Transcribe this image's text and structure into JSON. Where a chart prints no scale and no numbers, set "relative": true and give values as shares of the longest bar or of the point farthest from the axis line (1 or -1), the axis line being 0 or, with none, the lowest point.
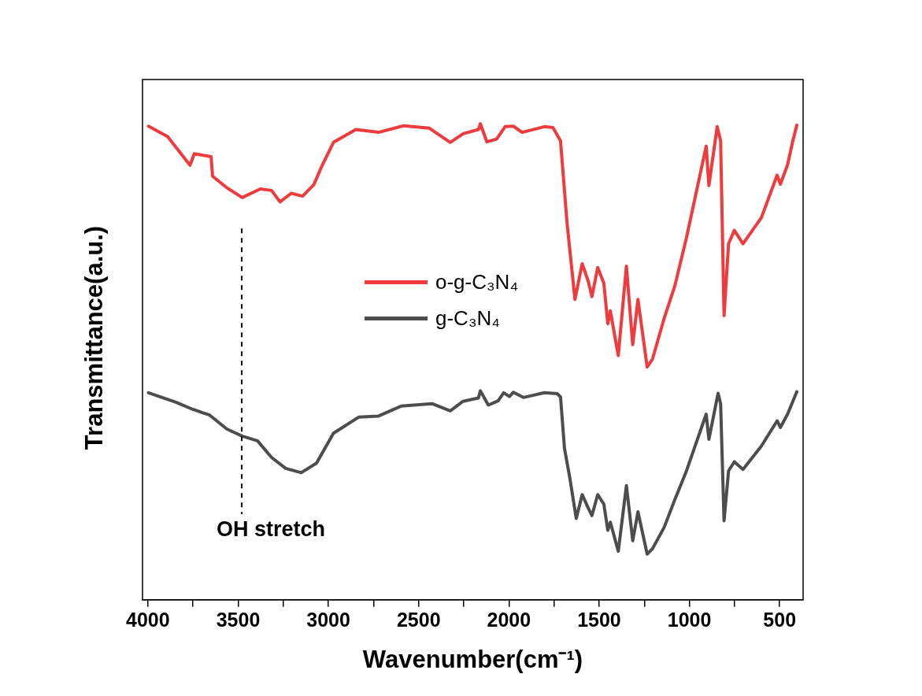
{
  "chart_data": {
    "type": "line",
    "xlabel": "Wavenumber(cm⁻¹)",
    "ylabel": "Transmittance(a.u.)",
    "relative": true,
    "xlim": [
      4030,
      370
    ],
    "xticks": [
      4000,
      {
        "value": 3750,
        "label": null
      },
      3500,
      {
        "value": 3250,
        "label": null
      },
      3000,
      {
        "value": 2750,
        "label": null
      },
      2500,
      {
        "value": 2250,
        "label": null
      },
      2000,
      {
        "value": 1750,
        "label": null
      },
      1500,
      {
        "value": 1250,
        "label": null
      },
      1000,
      {
        "value": 750,
        "label": null
      },
      500
    ],
    "tick_labels": "x",
    "grid": false,
    "legend": "center",
    "line_style": "solid",
    "series": [
      {
        "name": "o-g-C₃N₄",
        "color": "#ef3b3d",
        "x": [
          3997,
          3891,
          3767,
          3743,
          3650,
          3642,
          3564,
          3478,
          3377,
          3315,
          3268,
          3206,
          3143,
          3081,
          3034,
          2972,
          2848,
          2722,
          2582,
          2442,
          2325,
          2254,
          2169,
          2158,
          2122,
          2068,
          2021,
          1975,
          1927,
          1803,
          1756,
          1714,
          1678,
          1634,
          1594,
          1561,
          1540,
          1508,
          1474,
          1452,
          1438,
          1394,
          1349,
          1314,
          1285,
          1234,
          1205,
          1140,
          1081,
          1016,
          907,
          892,
          846,
          827,
          808,
          783,
          751,
          703,
          601,
          514,
          496,
          456,
          427,
          405
        ],
        "values": [
          0.995,
          0.973,
          0.913,
          0.937,
          0.931,
          0.89,
          0.866,
          0.845,
          0.863,
          0.86,
          0.836,
          0.854,
          0.848,
          0.872,
          0.913,
          0.961,
          0.988,
          0.982,
          0.996,
          0.991,
          0.961,
          0.979,
          0.988,
          1.0,
          0.962,
          0.968,
          0.994,
          0.995,
          0.982,
          0.994,
          0.992,
          0.964,
          0.792,
          0.631,
          0.706,
          0.67,
          0.637,
          0.698,
          0.665,
          0.58,
          0.607,
          0.513,
          0.701,
          0.536,
          0.631,
          0.489,
          0.505,
          0.591,
          0.659,
          0.761,
          0.953,
          0.87,
          0.994,
          0.964,
          0.597,
          0.748,
          0.776,
          0.748,
          0.803,
          0.892,
          0.873,
          0.914,
          0.964,
          0.997
        ]
      },
      {
        "name": "g-C₃N₄",
        "color": "#4d4d4d",
        "x": [
          3997,
          3845,
          3751,
          3658,
          3564,
          3478,
          3393,
          3315,
          3237,
          3151,
          3066,
          2972,
          2831,
          2722,
          2597,
          2426,
          2325,
          2254,
          2169,
          2158,
          2114,
          2060,
          2029,
          1997,
          1975,
          1920,
          1803,
          1732,
          1714,
          1692,
          1663,
          1627,
          1594,
          1561,
          1540,
          1508,
          1474,
          1452,
          1438,
          1394,
          1349,
          1314,
          1285,
          1234,
          1205,
          1140,
          1081,
          1016,
          907,
          892,
          841,
          827,
          808,
          783,
          751,
          703,
          601,
          514,
          496,
          456,
          405
        ],
        "values": [
          0.435,
          0.415,
          0.4,
          0.388,
          0.359,
          0.344,
          0.334,
          0.299,
          0.276,
          0.267,
          0.287,
          0.35,
          0.384,
          0.386,
          0.407,
          0.412,
          0.397,
          0.417,
          0.424,
          0.439,
          0.409,
          0.418,
          0.435,
          0.427,
          0.436,
          0.425,
          0.435,
          0.433,
          0.426,
          0.318,
          0.257,
          0.171,
          0.221,
          0.193,
          0.177,
          0.221,
          0.201,
          0.146,
          0.163,
          0.102,
          0.24,
          0.124,
          0.185,
          0.096,
          0.107,
          0.152,
          0.21,
          0.271,
          0.39,
          0.337,
          0.434,
          0.412,
          0.166,
          0.271,
          0.29,
          0.274,
          0.323,
          0.376,
          0.362,
          0.39,
          0.437
        ]
      }
    ],
    "ref_lines": [
      {
        "axis": "x",
        "value": 3480,
        "label": "OH stretch",
        "line_style": "dashed",
        "color": "#000000"
      }
    ]
  }
}
